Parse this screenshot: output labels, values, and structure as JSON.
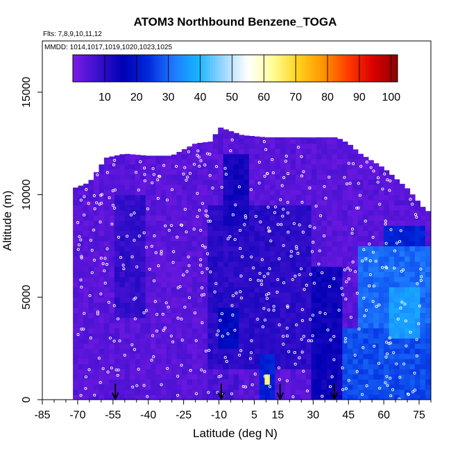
{
  "chart_data": {
    "type": "heatmap",
    "title": "ATOM3 Northbound Benzene_TOGA",
    "subtitle": "Flts: 7,8,9,10,11,12",
    "annotation": "MMDD: 1014,1017,1019,1020,1023,1025",
    "xlabel": "Latitude (deg N)",
    "ylabel": "Altitude (m)",
    "xlim": [
      -85,
      80
    ],
    "ylim": [
      0,
      17500
    ],
    "x_ticks": [
      -85,
      -70,
      -55,
      -40,
      -25,
      -10,
      5,
      15,
      30,
      45,
      60,
      75
    ],
    "x_tick_labels": [
      "-85",
      "-70",
      "-55",
      "-40",
      "-25",
      "-10",
      "5",
      "15",
      "30",
      "45",
      "60",
      "75"
    ],
    "y_ticks": [
      0,
      5000,
      10000,
      15000
    ],
    "y_tick_labels": [
      "0",
      "5000",
      "10000",
      "15000"
    ],
    "colorbar": {
      "ticks": [
        10,
        20,
        30,
        40,
        50,
        60,
        70,
        80,
        90,
        100
      ],
      "tick_labels": [
        "10",
        "20",
        "30",
        "40",
        "50",
        "60",
        "70",
        "80",
        "90",
        "100"
      ],
      "range": [
        0,
        102
      ],
      "colors": [
        "#7a1ae6",
        "#3a10cc",
        "#0000b4",
        "#0028dc",
        "#1e78ff",
        "#14b4ff",
        "#9ad6ff",
        "#ffffff",
        "#ffff96",
        "#ffd21e",
        "#ff9600",
        "#ff3c00",
        "#dc0000",
        "#8c0000"
      ]
    },
    "ceiling_profile": {
      "lat": [
        -72,
        -65,
        -58,
        -50,
        -40,
        -30,
        -20,
        -13,
        -10,
        0,
        10,
        20,
        30,
        40,
        45,
        50,
        60,
        70,
        78
      ],
      "alt": [
        10300,
        10600,
        11800,
        12000,
        11900,
        11900,
        12500,
        12600,
        13300,
        12900,
        12800,
        12800,
        12800,
        12800,
        12500,
        12000,
        11300,
        10300,
        9200
      ]
    },
    "arrows_lat": [
      -54,
      -9,
      16,
      39
    ],
    "regions": [
      {
        "lat": [
          -72,
          75
        ],
        "alt": [
          0,
          13000
        ],
        "value": 4
      },
      {
        "lat": [
          -55,
          -42
        ],
        "alt": [
          4000,
          10000
        ],
        "value": 9
      },
      {
        "lat": [
          -15,
          30
        ],
        "alt": [
          1500,
          9500
        ],
        "value": 10
      },
      {
        "lat": [
          -10,
          -2
        ],
        "alt": [
          2500,
          4500
        ],
        "value": 18
      },
      {
        "lat": [
          -8,
          3
        ],
        "alt": [
          8500,
          12000
        ],
        "value": 13
      },
      {
        "lat": [
          -14,
          -2
        ],
        "alt": [
          0,
          1200
        ],
        "value": 6
      },
      {
        "lat": [
          8,
          13
        ],
        "alt": [
          0,
          2200
        ],
        "value": 22
      },
      {
        "lat": [
          10,
          12
        ],
        "alt": [
          700,
          1300
        ],
        "value": 65
      },
      {
        "lat": [
          30,
          42
        ],
        "alt": [
          0,
          6500
        ],
        "value": 14
      },
      {
        "lat": [
          42,
          80
        ],
        "alt": [
          0,
          3500
        ],
        "value": 27
      },
      {
        "lat": [
          50,
          80
        ],
        "alt": [
          3500,
          7500
        ],
        "value": 30
      },
      {
        "lat": [
          62,
          76
        ],
        "alt": [
          3000,
          5500
        ],
        "value": 36
      },
      {
        "lat": [
          60,
          78
        ],
        "alt": [
          7500,
          8500
        ],
        "value": 22
      }
    ]
  }
}
